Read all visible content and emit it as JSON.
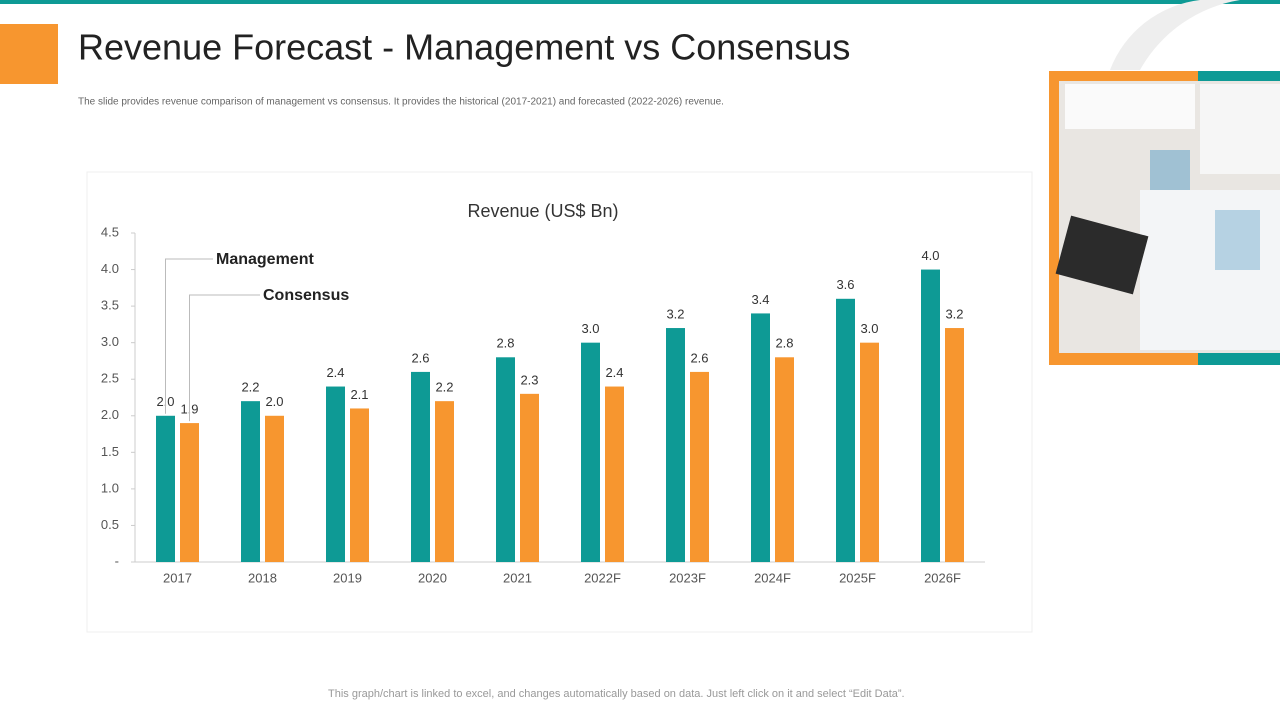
{
  "title": "Revenue Forecast - Management vs Consensus",
  "subtitle": "The slide provides revenue comparison of management vs consensus. It provides the historical (2017-2021) and forecasted (2022-2026) revenue.",
  "footer": "This graph/chart is linked to excel,  and changes automatically based on data. Just left click on it and select “Edit Data”.",
  "chart_data": {
    "type": "bar",
    "title": "Revenue (US$ Bn)",
    "categories": [
      "2017",
      "2018",
      "2019",
      "2020",
      "2021",
      "2022F",
      "2023F",
      "2024F",
      "2025F",
      "2026F"
    ],
    "series": [
      {
        "name": "Management",
        "color": "#0e9a95",
        "values": [
          2.0,
          2.2,
          2.4,
          2.6,
          2.8,
          3.0,
          3.2,
          3.4,
          3.6,
          4.0
        ],
        "value_labels": [
          "2.0",
          "2.2",
          "2.4",
          "2.6",
          "2.8",
          "3.0",
          "3.2",
          "3.4",
          "3.6",
          "4.0"
        ]
      },
      {
        "name": "Consensus",
        "color": "#f7962f",
        "values": [
          1.9,
          2.0,
          2.1,
          2.2,
          2.3,
          2.4,
          2.6,
          2.8,
          3.0,
          3.2
        ],
        "value_labels": [
          "1.9",
          "2.0",
          "2.1",
          "2.2",
          "2.3",
          "2.4",
          "2.6",
          "2.8",
          "3.0",
          "3.2"
        ]
      }
    ],
    "ylim": [
      0,
      4.5
    ],
    "yticks": [
      {
        "value": 0,
        "label": "-"
      },
      0.5,
      {
        "value": 1,
        "label": "1.0"
      },
      1.5,
      {
        "value": 2,
        "label": "2.0"
      },
      2.5,
      {
        "value": 3,
        "label": "3.0"
      },
      3.5,
      {
        "value": 4,
        "label": "4.0"
      },
      4.5
    ],
    "grid": false
  }
}
